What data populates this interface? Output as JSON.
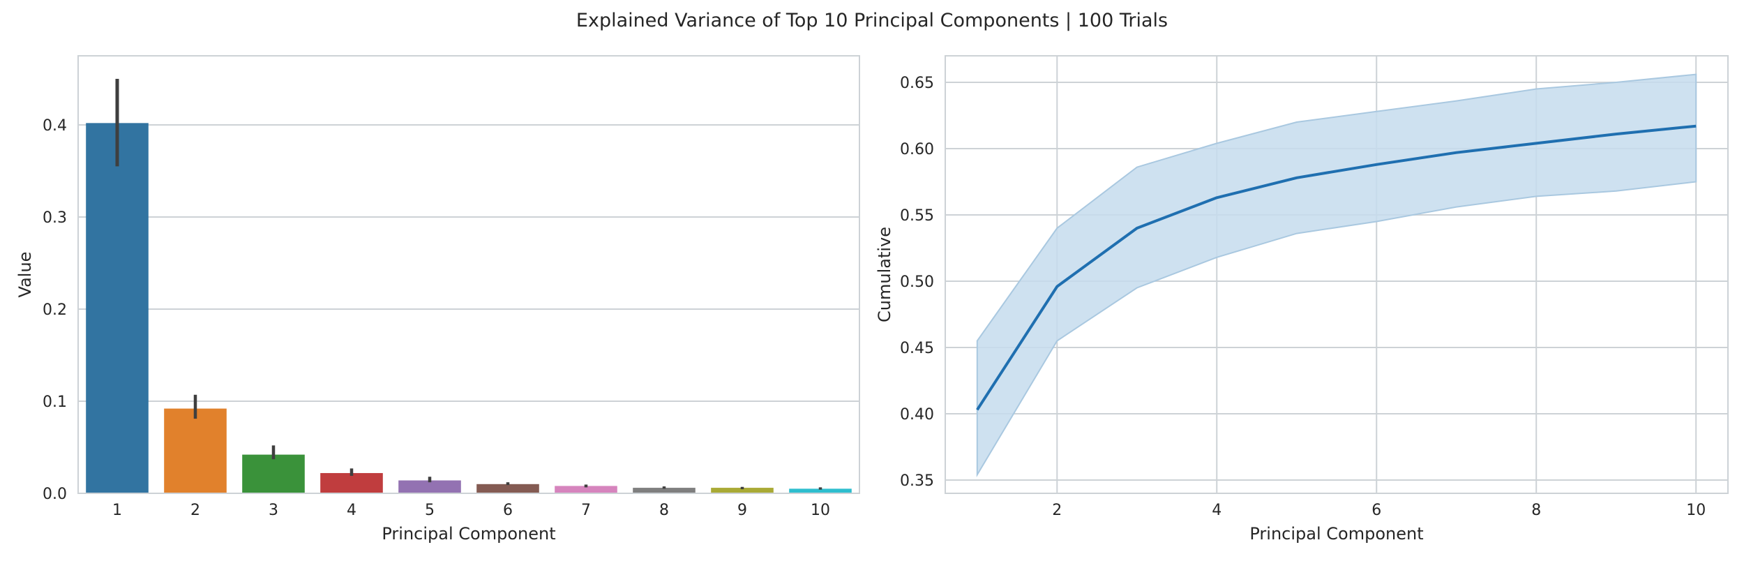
{
  "figure": {
    "title": "Explained Variance of Top 10 Principal Components | 100 Trials"
  },
  "chart_data": [
    {
      "type": "bar",
      "xlabel": "Principal Component",
      "ylabel": "Value",
      "categories": [
        "1",
        "2",
        "3",
        "4",
        "5",
        "6",
        "7",
        "8",
        "9",
        "10"
      ],
      "values": [
        0.402,
        0.092,
        0.042,
        0.022,
        0.014,
        0.01,
        0.008,
        0.006,
        0.006,
        0.005
      ],
      "error_low": [
        0.355,
        0.081,
        0.037,
        0.019,
        0.012,
        0.009,
        0.0065,
        0.005,
        0.0045,
        0.004
      ],
      "error_high": [
        0.45,
        0.107,
        0.052,
        0.027,
        0.018,
        0.012,
        0.0095,
        0.0075,
        0.007,
        0.0065
      ],
      "colors": [
        "#3274a1",
        "#e1812c",
        "#3a923a",
        "#c03d3e",
        "#9372b2",
        "#845b53",
        "#d684bd",
        "#7f7f7f",
        "#a9aa35",
        "#2ebece"
      ],
      "ylim": [
        0,
        0.475
      ],
      "yticks": [
        0.0,
        0.1,
        0.2,
        0.3,
        0.4
      ],
      "ytick_labels": [
        "0.0",
        "0.1",
        "0.2",
        "0.3",
        "0.4"
      ],
      "grid": "horizontal"
    },
    {
      "type": "line",
      "xlabel": "Principal Component",
      "ylabel": "Cumulative",
      "x": [
        1,
        2,
        3,
        4,
        5,
        6,
        7,
        8,
        9,
        10
      ],
      "y": [
        0.403,
        0.496,
        0.54,
        0.563,
        0.578,
        0.588,
        0.597,
        0.604,
        0.611,
        0.617
      ],
      "ci_low": [
        0.354,
        0.455,
        0.495,
        0.518,
        0.536,
        0.545,
        0.556,
        0.564,
        0.568,
        0.575
      ],
      "ci_high": [
        0.455,
        0.54,
        0.586,
        0.604,
        0.62,
        0.628,
        0.636,
        0.645,
        0.65,
        0.656
      ],
      "color": "#1f6fb0",
      "band_color": "#c6dced",
      "xlim": [
        0.6,
        10.4
      ],
      "ylim": [
        0.34,
        0.67
      ],
      "xticks": [
        2,
        4,
        6,
        8,
        10
      ],
      "xtick_labels": [
        "2",
        "4",
        "6",
        "8",
        "10"
      ],
      "yticks": [
        0.35,
        0.4,
        0.45,
        0.5,
        0.55,
        0.6,
        0.65
      ],
      "ytick_labels": [
        "0.35",
        "0.40",
        "0.45",
        "0.50",
        "0.55",
        "0.60",
        "0.65"
      ],
      "grid": "both"
    }
  ]
}
